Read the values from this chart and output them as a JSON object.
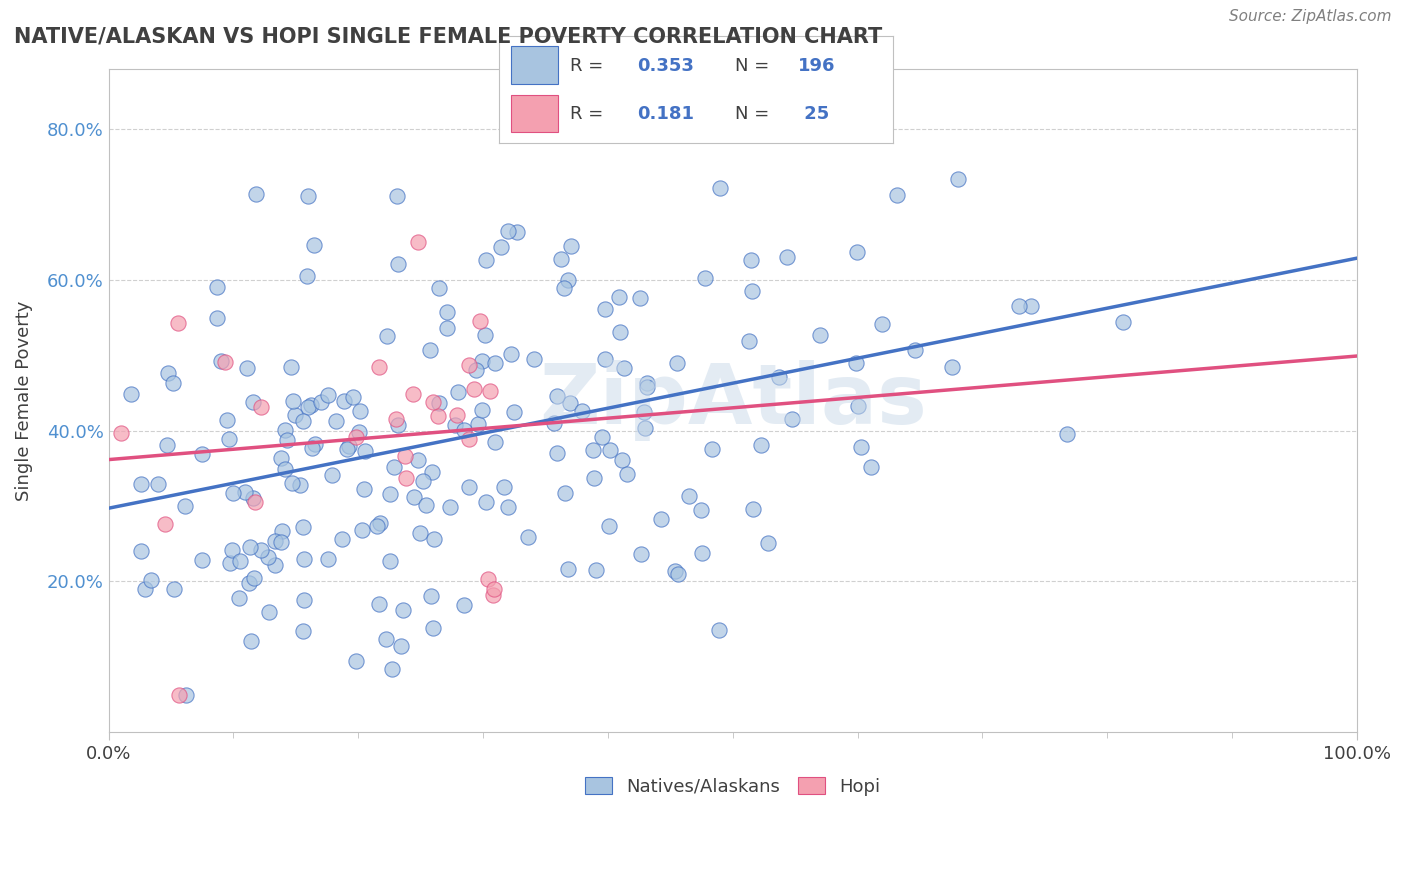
{
  "title": "NATIVE/ALASKAN VS HOPI SINGLE FEMALE POVERTY CORRELATION CHART",
  "source": "Source: ZipAtlas.com",
  "ylabel": "Single Female Poverty",
  "legend_items": [
    "Natives/Alaskans",
    "Hopi"
  ],
  "R_native": 0.353,
  "N_native": 196,
  "R_hopi": 0.181,
  "N_hopi": 25,
  "native_color": "#a8c4e0",
  "native_line_color": "#4472c4",
  "hopi_color": "#f4a0b0",
  "hopi_line_color": "#e05080",
  "background_color": "#ffffff",
  "grid_color": "#d0d0d0",
  "title_color": "#404040",
  "source_color": "#808080",
  "watermark": "ZipAtlas",
  "watermark_color": "#c8d8e8",
  "ytick_color": "#5090d0",
  "legend_text_color": "#404040",
  "legend_value_color": "#4472c4"
}
